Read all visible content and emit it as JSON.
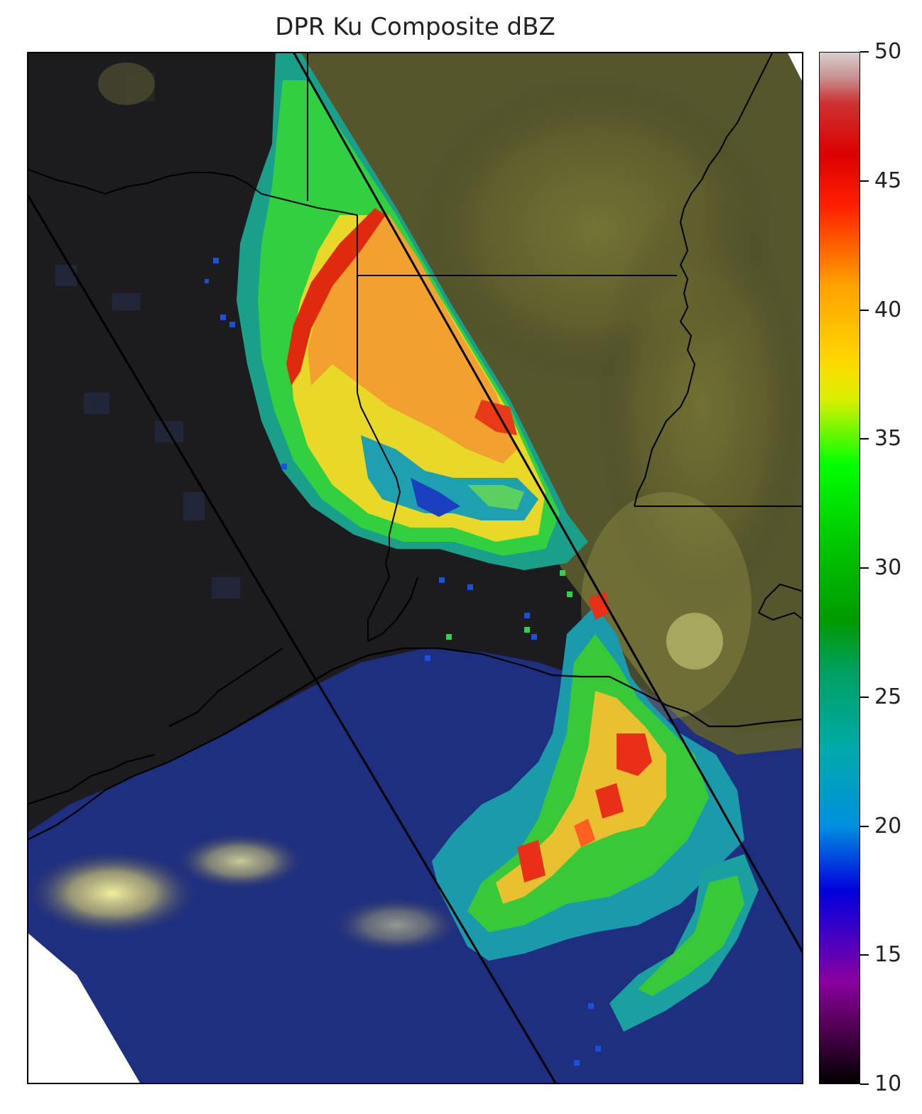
{
  "title": "DPR Ku Composite dBZ",
  "colorbar": {
    "label": "",
    "min": 10,
    "max": 50,
    "ticks": [
      "10",
      "15",
      "20",
      "25",
      "30",
      "35",
      "40",
      "45",
      "50"
    ],
    "stops": [
      {
        "value": 10,
        "color": "#000000"
      },
      {
        "value": 12,
        "color": "#4a004a"
      },
      {
        "value": 14,
        "color": "#8a00a0"
      },
      {
        "value": 16,
        "color": "#3a00c8"
      },
      {
        "value": 17.5,
        "color": "#0000dd"
      },
      {
        "value": 20,
        "color": "#0090e0"
      },
      {
        "value": 23,
        "color": "#00aaaa"
      },
      {
        "value": 26,
        "color": "#00a060"
      },
      {
        "value": 28,
        "color": "#009a00"
      },
      {
        "value": 31,
        "color": "#00c800"
      },
      {
        "value": 34,
        "color": "#00ff00"
      },
      {
        "value": 36.5,
        "color": "#d8f000"
      },
      {
        "value": 38,
        "color": "#ffd800"
      },
      {
        "value": 41,
        "color": "#ffa000"
      },
      {
        "value": 44,
        "color": "#ff2000"
      },
      {
        "value": 46,
        "color": "#dd0000"
      },
      {
        "value": 48,
        "color": "#cc3030"
      },
      {
        "value": 49,
        "color": "#c89090"
      },
      {
        "value": 50,
        "color": "#d8d0d0"
      }
    ]
  },
  "colors": {
    "land": "#1c1c1e",
    "ocean": "#1f2f80",
    "cloud": "#6a6a30",
    "borders": "#000000",
    "swath_edge": "#000000"
  }
}
